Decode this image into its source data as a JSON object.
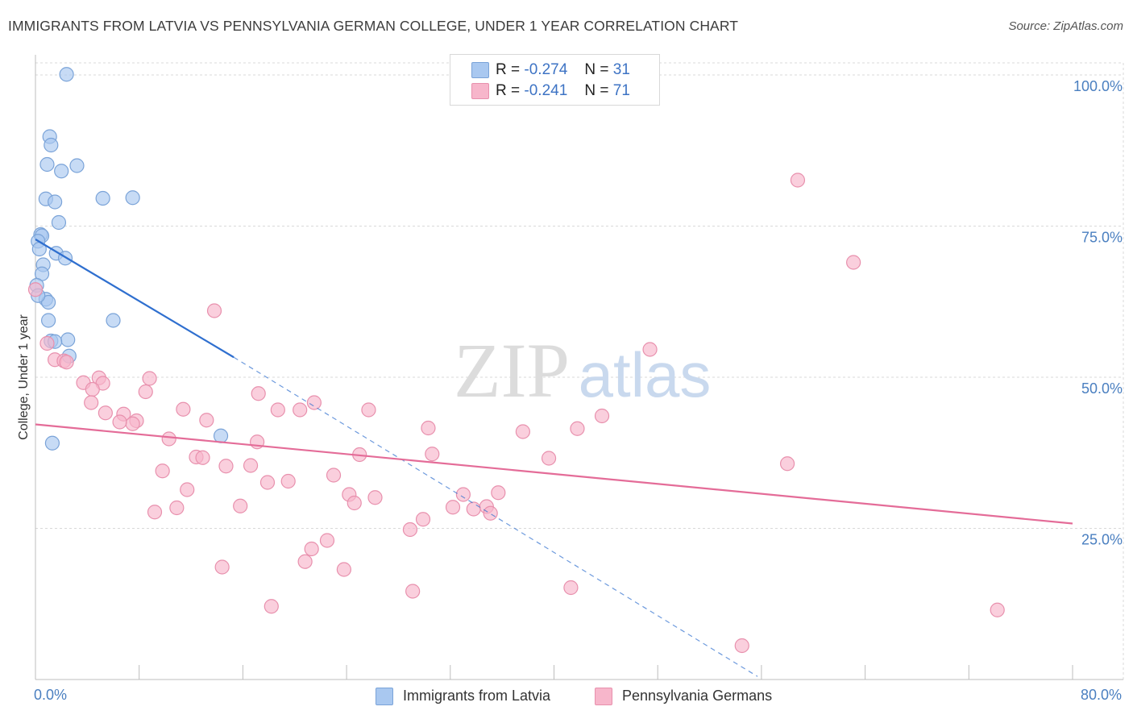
{
  "title": "IMMIGRANTS FROM LATVIA VS PENNSYLVANIA GERMAN COLLEGE, UNDER 1 YEAR CORRELATION CHART",
  "source": "Source: ZipAtlas.com",
  "watermark": {
    "zip": "ZIP",
    "atlas": "atlas"
  },
  "legend": {
    "r_label": "R =",
    "n_label": "N =",
    "series1": {
      "r": "-0.274",
      "n": "31"
    },
    "series2": {
      "r": "-0.241",
      "n": "71"
    }
  },
  "colors": {
    "series1_fill": "#a9c8f0",
    "series1_stroke": "#7aa3d8",
    "series1_line": "#2f6fcf",
    "series2_fill": "#f7b6cb",
    "series2_stroke": "#e890ad",
    "series2_line": "#e46c98",
    "axis_text": "#4a7fc0",
    "grid": "#d9d9d9"
  },
  "chart_data": {
    "type": "scatter",
    "title": "IMMIGRANTS FROM LATVIA VS PENNSYLVANIA GERMAN COLLEGE, UNDER 1 YEAR CORRELATION CHART",
    "xlabel": "",
    "ylabel": "College, Under 1 year",
    "xlim": [
      0,
      80
    ],
    "ylim": [
      0,
      102
    ],
    "x_tick_labels": [
      "0.0%",
      "80.0%"
    ],
    "y_ticks": [
      25,
      50,
      75,
      100
    ],
    "y_tick_labels": [
      "25.0%",
      "50.0%",
      "75.0%",
      "100.0%"
    ],
    "grid": true,
    "series": [
      {
        "name": "Immigrants from Latvia",
        "points": [
          [
            2.4,
            100.1
          ],
          [
            1.1,
            89.8
          ],
          [
            1.2,
            88.4
          ],
          [
            0.9,
            85.2
          ],
          [
            3.2,
            85.0
          ],
          [
            2.0,
            84.1
          ],
          [
            0.8,
            79.5
          ],
          [
            1.5,
            79.0
          ],
          [
            5.2,
            79.6
          ],
          [
            7.5,
            79.7
          ],
          [
            1.8,
            75.6
          ],
          [
            0.4,
            73.6
          ],
          [
            0.5,
            73.4
          ],
          [
            0.2,
            72.5
          ],
          [
            0.3,
            71.2
          ],
          [
            1.6,
            70.5
          ],
          [
            2.3,
            69.7
          ],
          [
            0.6,
            68.6
          ],
          [
            0.5,
            67.1
          ],
          [
            0.1,
            65.2
          ],
          [
            0.8,
            62.9
          ],
          [
            1.0,
            62.4
          ],
          [
            1.0,
            59.4
          ],
          [
            6.0,
            59.4
          ],
          [
            2.5,
            56.2
          ],
          [
            1.2,
            56.0
          ],
          [
            1.5,
            55.9
          ],
          [
            2.6,
            53.5
          ],
          [
            14.3,
            40.3
          ],
          [
            1.3,
            39.1
          ],
          [
            0.2,
            63.5
          ]
        ],
        "trend": {
          "x": [
            0.0,
            15.3
          ],
          "y": [
            72.8,
            53.3
          ],
          "extended_to": [
            55.7,
            0.5
          ]
        }
      },
      {
        "name": "Pennsylvania Germans",
        "points": [
          [
            0.0,
            64.5
          ],
          [
            0.9,
            55.6
          ],
          [
            1.5,
            52.9
          ],
          [
            2.2,
            52.7
          ],
          [
            2.4,
            52.5
          ],
          [
            4.9,
            49.9
          ],
          [
            5.2,
            49.0
          ],
          [
            3.7,
            49.1
          ],
          [
            4.4,
            48.0
          ],
          [
            8.8,
            49.8
          ],
          [
            8.5,
            47.6
          ],
          [
            17.2,
            47.3
          ],
          [
            4.3,
            45.8
          ],
          [
            21.5,
            45.8
          ],
          [
            11.4,
            44.7
          ],
          [
            18.7,
            44.6
          ],
          [
            20.4,
            44.6
          ],
          [
            25.7,
            44.6
          ],
          [
            5.4,
            44.1
          ],
          [
            6.8,
            43.9
          ],
          [
            7.8,
            42.8
          ],
          [
            13.2,
            42.9
          ],
          [
            7.5,
            42.3
          ],
          [
            6.5,
            42.6
          ],
          [
            30.3,
            41.6
          ],
          [
            41.8,
            41.5
          ],
          [
            43.7,
            43.6
          ],
          [
            10.3,
            39.8
          ],
          [
            17.1,
            39.3
          ],
          [
            25.0,
            37.2
          ],
          [
            30.6,
            37.3
          ],
          [
            39.6,
            36.6
          ],
          [
            12.4,
            36.8
          ],
          [
            12.9,
            36.7
          ],
          [
            14.7,
            35.3
          ],
          [
            16.6,
            35.4
          ],
          [
            58.0,
            35.7
          ],
          [
            9.8,
            34.5
          ],
          [
            23.0,
            33.8
          ],
          [
            19.5,
            32.8
          ],
          [
            17.9,
            32.6
          ],
          [
            11.7,
            31.4
          ],
          [
            24.2,
            30.6
          ],
          [
            26.2,
            30.1
          ],
          [
            33.0,
            30.6
          ],
          [
            35.7,
            30.9
          ],
          [
            24.6,
            29.2
          ],
          [
            15.8,
            28.7
          ],
          [
            32.2,
            28.5
          ],
          [
            33.8,
            28.2
          ],
          [
            34.8,
            28.6
          ],
          [
            10.9,
            28.4
          ],
          [
            9.2,
            27.7
          ],
          [
            35.1,
            27.5
          ],
          [
            29.9,
            26.5
          ],
          [
            28.9,
            24.8
          ],
          [
            22.5,
            23.0
          ],
          [
            21.3,
            21.6
          ],
          [
            20.8,
            19.5
          ],
          [
            14.4,
            18.6
          ],
          [
            23.8,
            18.2
          ],
          [
            29.1,
            14.6
          ],
          [
            41.3,
            15.2
          ],
          [
            18.2,
            12.1
          ],
          [
            74.2,
            11.5
          ],
          [
            54.5,
            5.6
          ],
          [
            58.8,
            82.6
          ],
          [
            63.1,
            69.0
          ],
          [
            13.8,
            61.0
          ],
          [
            47.4,
            54.6
          ],
          [
            37.6,
            41.0
          ]
        ],
        "trend": {
          "x": [
            0.0,
            80.0
          ],
          "y": [
            42.2,
            25.8
          ]
        }
      }
    ]
  },
  "bottom_legend": {
    "series1_label": "Immigrants from Latvia",
    "series2_label": "Pennsylvania Germans"
  }
}
